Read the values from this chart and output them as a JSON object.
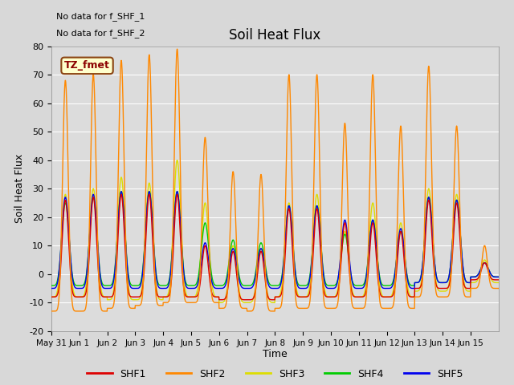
{
  "title": "Soil Heat Flux",
  "ylabel": "Soil Heat Flux",
  "xlabel": "Time",
  "ylim": [
    -20,
    80
  ],
  "fig_bg": "#d8d8d8",
  "ax_bg": "#dcdcdc",
  "annotations": [
    "No data for f_SHF_1",
    "No data for f_SHF_2"
  ],
  "tz_label": "TZ_fmet",
  "legend_entries": [
    "SHF1",
    "SHF2",
    "SHF3",
    "SHF4",
    "SHF5"
  ],
  "line_colors": [
    "#dd0000",
    "#ff8800",
    "#dddd00",
    "#00cc00",
    "#0000ee"
  ],
  "xtick_labels": [
    "May 31",
    "Jun 1",
    "Jun 2",
    "Jun 3",
    "Jun 4",
    "Jun 5",
    "Jun 6",
    "Jun 7",
    "Jun 8",
    "Jun 9",
    "Jun 10",
    "Jun 11",
    "Jun 12",
    "Jun 13",
    "Jun 14",
    "Jun 15"
  ],
  "ytick_values": [
    -20,
    -10,
    0,
    10,
    20,
    30,
    40,
    50,
    60,
    70,
    80
  ],
  "num_days": 16,
  "points_per_day": 144,
  "shf2_peaks": [
    68,
    70,
    75,
    77,
    79,
    48,
    36,
    35,
    70,
    70,
    53,
    70,
    52,
    73,
    52,
    10
  ],
  "shf3_peaks": [
    28,
    30,
    34,
    32,
    40,
    25,
    10,
    9,
    25,
    28,
    15,
    25,
    18,
    30,
    28,
    5
  ],
  "shf4_peaks": [
    25,
    27,
    29,
    29,
    29,
    18,
    12,
    11,
    24,
    24,
    14,
    19,
    15,
    27,
    26,
    4
  ],
  "shf5_peaks": [
    27,
    28,
    29,
    29,
    29,
    11,
    9,
    9,
    24,
    24,
    19,
    19,
    16,
    27,
    26,
    4
  ],
  "shf1_peaks": [
    26,
    27,
    28,
    28,
    28,
    10,
    8,
    8,
    23,
    23,
    18,
    18,
    15,
    26,
    25,
    4
  ],
  "shf2_troughs": [
    -13,
    -13,
    -12,
    -11,
    -10,
    -10,
    -12,
    -13,
    -12,
    -12,
    -12,
    -12,
    -12,
    -8,
    -8,
    -5
  ],
  "shf3_troughs": [
    -8,
    -8,
    -9,
    -9,
    -8,
    -8,
    -10,
    -10,
    -8,
    -8,
    -8,
    -8,
    -8,
    -6,
    -6,
    -3
  ],
  "shf1_troughs": [
    -8,
    -8,
    -8,
    -8,
    -8,
    -8,
    -9,
    -9,
    -8,
    -8,
    -8,
    -8,
    -8,
    -5,
    -5,
    -2
  ],
  "shf4_troughs": [
    -4,
    -4,
    -4,
    -4,
    -4,
    -4,
    -4,
    -4,
    -4,
    -4,
    -4,
    -4,
    -4,
    -3,
    -3,
    -1
  ],
  "shf5_troughs": [
    -5,
    -5,
    -5,
    -5,
    -5,
    -5,
    -5,
    -5,
    -5,
    -5,
    -5,
    -5,
    -5,
    -3,
    -3,
    -1
  ]
}
